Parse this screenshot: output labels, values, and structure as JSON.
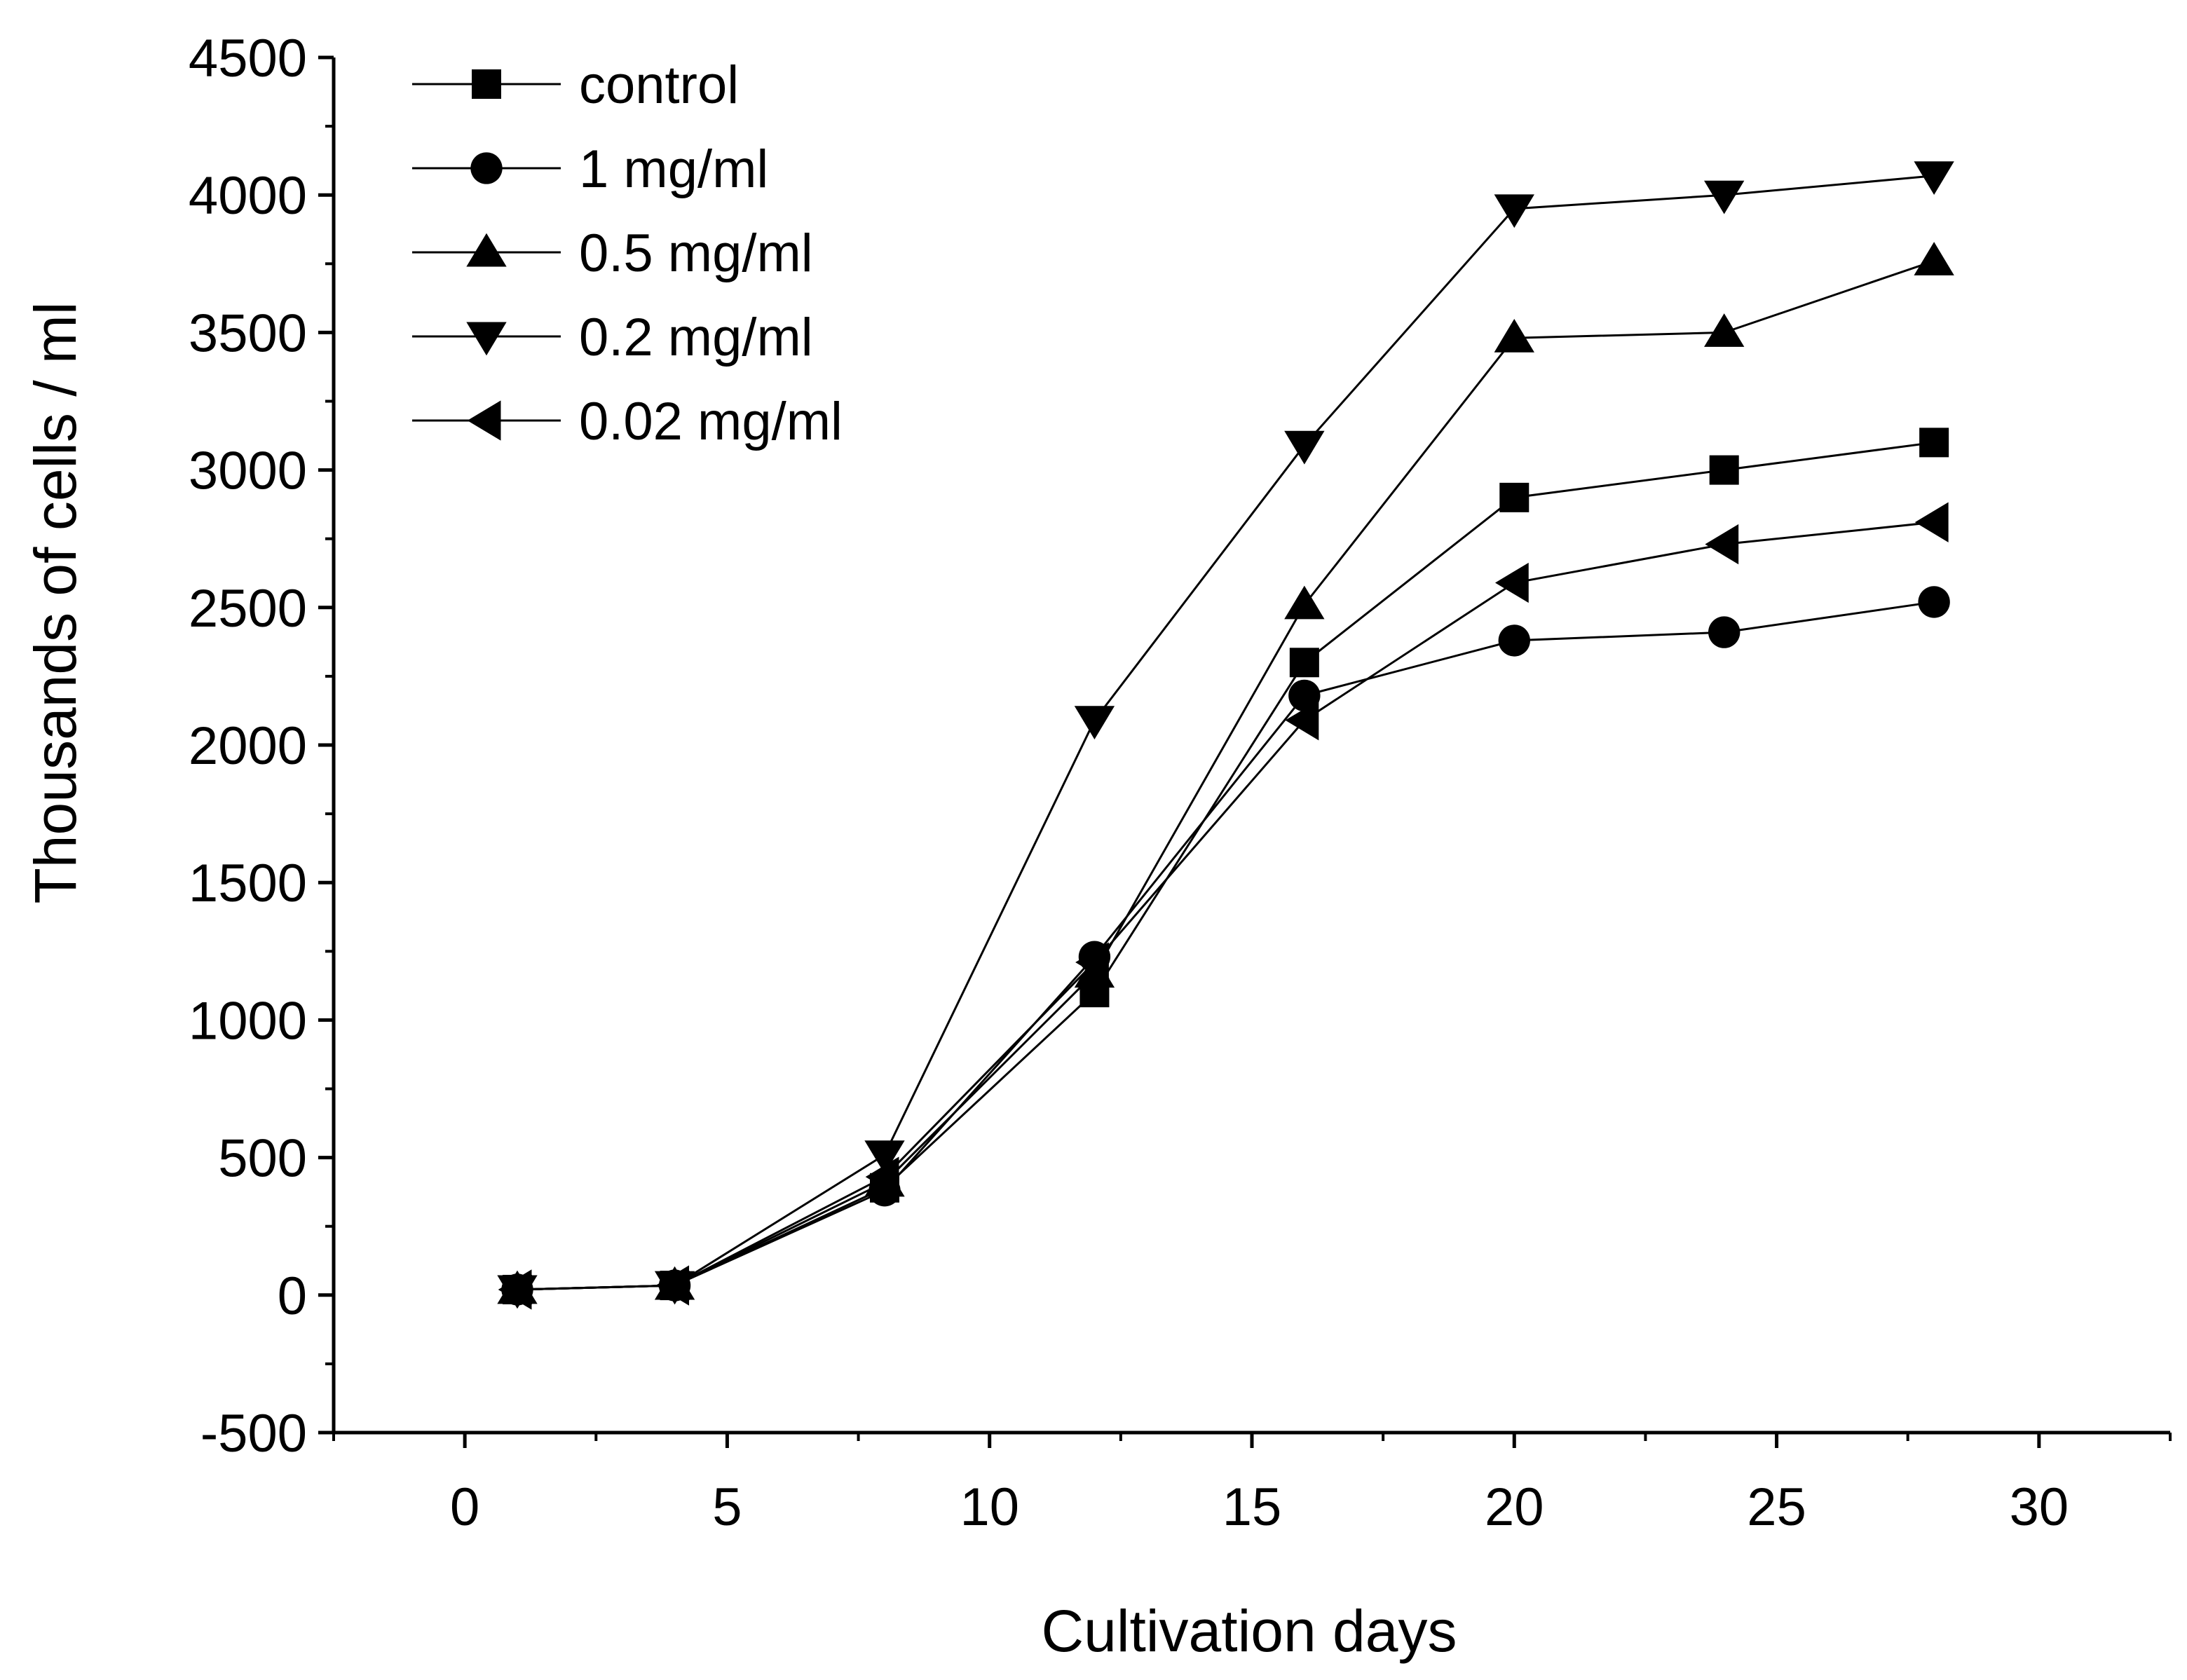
{
  "chart_data": {
    "type": "line",
    "title": "",
    "xlabel": "Cultivation days",
    "ylabel": "Thousands of cells / ml",
    "xlim": [
      -2.5,
      32.5
    ],
    "ylim": [
      -500,
      4500
    ],
    "xticks": [
      0,
      5,
      10,
      15,
      20,
      25,
      30
    ],
    "xtick_labels": [
      "0",
      "5",
      "10",
      "15",
      "20",
      "25",
      "30"
    ],
    "yticks": [
      -500,
      0,
      500,
      1000,
      1500,
      2000,
      2500,
      3000,
      3500,
      4000,
      4500
    ],
    "ytick_labels": [
      "-500",
      "0",
      "500",
      "1000",
      "1500",
      "2000",
      "2500",
      "3000",
      "3500",
      "4000",
      "4500"
    ],
    "grid": false,
    "legend_position": "top-left",
    "x": [
      1,
      4,
      8,
      12,
      16,
      20,
      24,
      28
    ],
    "series": [
      {
        "name": "control",
        "marker": "square",
        "values": [
          20,
          35,
          390,
          1100,
          2300,
          2900,
          3000,
          3100
        ]
      },
      {
        "name": "1 mg/ml",
        "marker": "circle",
        "values": [
          20,
          35,
          380,
          1230,
          2180,
          2380,
          2410,
          2520
        ]
      },
      {
        "name": "0.5 mg/ml",
        "marker": "triangle-up",
        "values": [
          20,
          35,
          410,
          1170,
          2510,
          3480,
          3500,
          3760
        ]
      },
      {
        "name": "0.2 mg/ml",
        "marker": "triangle-down",
        "values": [
          20,
          35,
          510,
          2090,
          3090,
          3950,
          4000,
          4070
        ]
      },
      {
        "name": "0.02 mg/ml",
        "marker": "triangle-left",
        "values": [
          20,
          35,
          430,
          1210,
          2090,
          2590,
          2730,
          2810
        ]
      }
    ],
    "colors": {
      "line": "#000000",
      "marker": "#000000",
      "axis": "#000000",
      "background": "#ffffff"
    }
  }
}
